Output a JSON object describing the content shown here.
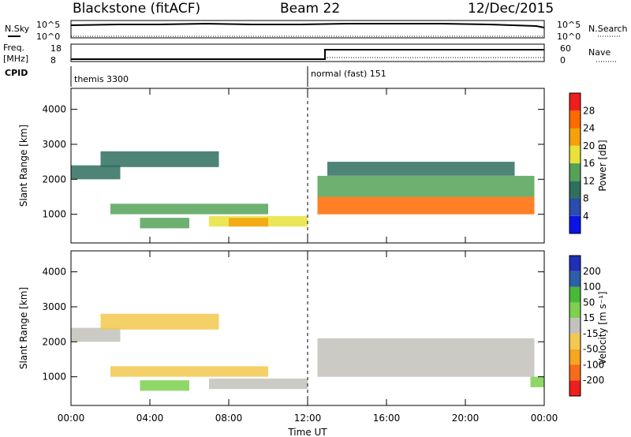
{
  "header": {
    "station": "Blackstone (fitACF)",
    "beam": "Beam 22",
    "date": "12/Dec/2015"
  },
  "status_panels": {
    "nsky_label": "N.Sky",
    "nsky_top": "10^5",
    "nsky_bottom": "10^0",
    "nsearch_label": "N.Search",
    "nsearch_top": "10^5",
    "nsearch_bottom": "10^0",
    "freq_label_1": "Freq.",
    "freq_label_2": "[MHz]",
    "freq_top": "18",
    "freq_bottom": "8",
    "nave_label": "Nave",
    "nave_top": "60",
    "nave_bottom": "0",
    "cpid_label": "CPID",
    "cpid_1": "themis 3300",
    "cpid_2": "normal (fast) 151"
  },
  "colors": {
    "power_scale": [
      "#0a14e6",
      "#2a4db0",
      "#2f6f5e",
      "#55a257",
      "#e8e23a",
      "#f5a10a",
      "#ff6a00",
      "#ee1e1e"
    ],
    "velocity_scale": [
      "#ee1e1e",
      "#f76b1c",
      "#f7a41e",
      "#f2c84e",
      "#c2c1bb",
      "#7ed04e",
      "#48b83a",
      "#2c5fa8",
      "#1f2fb6"
    ]
  },
  "chart_data": {
    "type": "heatmap",
    "x": {
      "label": "Time UT",
      "range": [
        "00:00",
        "24:00"
      ],
      "ticks": [
        "00:00",
        "04:00",
        "08:00",
        "12:00",
        "16:00",
        "20:00",
        "00:00"
      ],
      "mode_change": "12:00"
    },
    "y": {
      "label": "Slant Range [km]",
      "ticks": [
        1000,
        2000,
        3000,
        4000
      ],
      "range": [
        180,
        4600
      ]
    },
    "panels": [
      {
        "name": "power",
        "colorbar_label": "Power [dB]",
        "colorbar_ticks": [
          "4",
          "8",
          "12",
          "16",
          "20",
          "24",
          "28"
        ],
        "range": [
          0,
          32
        ],
        "echo_regions": [
          {
            "start_hour": 0.0,
            "end_hour": 2.5,
            "range_from": 2000,
            "range_to": 2400,
            "value": 8
          },
          {
            "start_hour": 1.5,
            "end_hour": 7.5,
            "range_from": 2350,
            "range_to": 2800,
            "value": 8
          },
          {
            "start_hour": 2.0,
            "end_hour": 10.0,
            "range_from": 1000,
            "range_to": 1300,
            "value": 12
          },
          {
            "start_hour": 3.5,
            "end_hour": 6.0,
            "range_from": 600,
            "range_to": 900,
            "value": 14
          },
          {
            "start_hour": 7.0,
            "end_hour": 12.0,
            "range_from": 650,
            "range_to": 950,
            "value": 16
          },
          {
            "start_hour": 8.0,
            "end_hour": 10.0,
            "range_from": 650,
            "range_to": 900,
            "value": 20
          },
          {
            "start_hour": 12.5,
            "end_hour": 23.5,
            "range_from": 1000,
            "range_to": 1500,
            "value": 26
          },
          {
            "start_hour": 12.5,
            "end_hour": 23.5,
            "range_from": 1500,
            "range_to": 2100,
            "value": 14
          },
          {
            "start_hour": 13.0,
            "end_hour": 22.5,
            "range_from": 2100,
            "range_to": 2500,
            "value": 10
          }
        ]
      },
      {
        "name": "velocity",
        "colorbar_label": "Velocity [m s⁻¹]",
        "colorbar_ticks": [
          "-200",
          "-100",
          "-50",
          "-15",
          "15",
          "50",
          "100",
          "200"
        ],
        "range": [
          -250,
          250
        ],
        "echo_regions": [
          {
            "start_hour": 0.0,
            "end_hour": 2.5,
            "range_from": 2000,
            "range_to": 2400,
            "value": 0
          },
          {
            "start_hour": 1.5,
            "end_hour": 7.5,
            "range_from": 2350,
            "range_to": 2800,
            "value": -30
          },
          {
            "start_hour": 2.0,
            "end_hour": 10.0,
            "range_from": 1000,
            "range_to": 1300,
            "value": -40
          },
          {
            "start_hour": 3.5,
            "end_hour": 6.0,
            "range_from": 600,
            "range_to": 900,
            "value": 40
          },
          {
            "start_hour": 7.0,
            "end_hour": 12.0,
            "range_from": 650,
            "range_to": 950,
            "value": 0
          },
          {
            "start_hour": 12.5,
            "end_hour": 23.5,
            "range_from": 1000,
            "range_to": 2100,
            "value": 0
          },
          {
            "start_hour": 23.3,
            "end_hour": 24.0,
            "range_from": 700,
            "range_to": 1000,
            "value": 40
          }
        ]
      }
    ]
  }
}
